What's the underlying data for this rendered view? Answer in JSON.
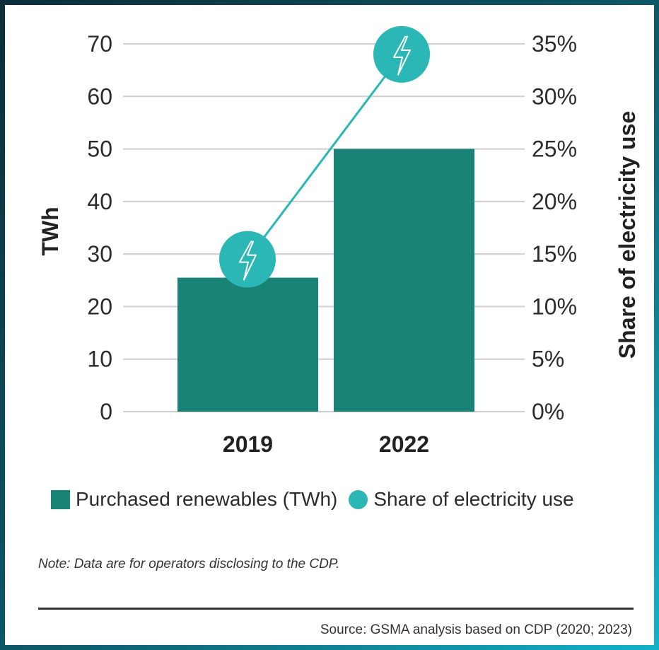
{
  "chart_data": {
    "type": "bar+line",
    "categories": [
      "2019",
      "2022"
    ],
    "series": [
      {
        "name": "Purchased renewables (TWh)",
        "axis": "left",
        "kind": "bar",
        "values": [
          25.5,
          50
        ]
      },
      {
        "name": "Share of electricity use",
        "axis": "right",
        "kind": "line-markers",
        "values": [
          14.5,
          34
        ]
      }
    ],
    "y_left": {
      "label": "TWh",
      "ylim": [
        0,
        70
      ],
      "ticks": [
        0,
        10,
        20,
        30,
        40,
        50,
        60,
        70
      ]
    },
    "y_right": {
      "label": "Share of electricity use",
      "ylim": [
        0,
        35
      ],
      "ticks": [
        "0%",
        "5%",
        "10%",
        "15%",
        "20%",
        "25%",
        "30%",
        "35%"
      ]
    },
    "grid": true,
    "legend": [
      "Purchased renewables (TWh)",
      "Share of electricity use"
    ],
    "colors": {
      "bar": "#1a8377",
      "line": "#2ab7b5",
      "marker_icon": "#ffffff"
    }
  },
  "note": "Note: Data are for operators disclosing to the CDP.",
  "source": "Source: GSMA analysis based on CDP (2020; 2023)"
}
